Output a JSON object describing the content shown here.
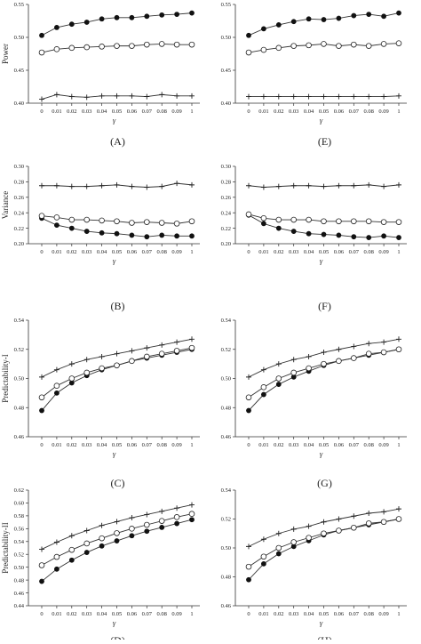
{
  "chart_data": [
    {
      "panel_label": "(A)",
      "type": "line",
      "ylabel": "Power",
      "xlabel": "γ",
      "x": [
        "0",
        "0.01",
        "0.02",
        "0.03",
        "0.04",
        "0.05",
        "0.06",
        "0.07",
        "0.08",
        "0.09",
        "1"
      ],
      "ylim": [
        0.4,
        0.55
      ],
      "yticks": [
        "0.40",
        "0.45",
        "0.50",
        "0.55"
      ],
      "series": [
        {
          "marker": "filled-circle",
          "values": [
            0.503,
            0.515,
            0.52,
            0.523,
            0.528,
            0.53,
            0.53,
            0.532,
            0.534,
            0.535,
            0.537
          ]
        },
        {
          "marker": "open-circle",
          "values": [
            0.477,
            0.482,
            0.484,
            0.485,
            0.486,
            0.487,
            0.487,
            0.489,
            0.49,
            0.489,
            0.489
          ]
        },
        {
          "marker": "plus",
          "values": [
            0.406,
            0.413,
            0.41,
            0.409,
            0.411,
            0.411,
            0.411,
            0.41,
            0.413,
            0.411,
            0.411
          ]
        }
      ]
    },
    {
      "panel_label": "(E)",
      "type": "line",
      "ylabel": "",
      "xlabel": "γ",
      "x": [
        "0",
        "0.01",
        "0.02",
        "0.03",
        "0.04",
        "0.05",
        "0.06",
        "0.07",
        "0.08",
        "0.09",
        "1"
      ],
      "ylim": [
        0.4,
        0.55
      ],
      "yticks": [
        "0.40",
        "0.45",
        "0.50",
        "0.55"
      ],
      "series": [
        {
          "marker": "filled-circle",
          "values": [
            0.503,
            0.513,
            0.519,
            0.524,
            0.528,
            0.527,
            0.529,
            0.533,
            0.535,
            0.532,
            0.537
          ]
        },
        {
          "marker": "open-circle",
          "values": [
            0.477,
            0.481,
            0.484,
            0.487,
            0.488,
            0.49,
            0.487,
            0.489,
            0.487,
            0.49,
            0.491
          ]
        },
        {
          "marker": "plus",
          "values": [
            0.41,
            0.41,
            0.41,
            0.41,
            0.41,
            0.41,
            0.41,
            0.41,
            0.41,
            0.41,
            0.411
          ]
        }
      ]
    },
    {
      "panel_label": "(B)",
      "type": "line",
      "ylabel": "Variance",
      "xlabel": "γ",
      "x": [
        "0",
        "0.01",
        "0.02",
        "0.03",
        "0.04",
        "0.05",
        "0.06",
        "0.07",
        "0.08",
        "0.09",
        "1"
      ],
      "ylim": [
        0.2,
        0.3
      ],
      "yticks": [
        "0.20",
        "0.22",
        "0.24",
        "0.26",
        "0.28",
        "0.30"
      ],
      "series": [
        {
          "marker": "filled-circle",
          "values": [
            0.233,
            0.224,
            0.22,
            0.216,
            0.214,
            0.213,
            0.211,
            0.209,
            0.211,
            0.21,
            0.21
          ]
        },
        {
          "marker": "open-circle",
          "values": [
            0.236,
            0.234,
            0.231,
            0.231,
            0.23,
            0.229,
            0.227,
            0.228,
            0.227,
            0.226,
            0.229
          ]
        },
        {
          "marker": "plus",
          "values": [
            0.275,
            0.275,
            0.274,
            0.274,
            0.275,
            0.276,
            0.274,
            0.273,
            0.274,
            0.278,
            0.276
          ]
        }
      ]
    },
    {
      "panel_label": "(F)",
      "type": "line",
      "ylabel": "",
      "xlabel": "γ",
      "x": [
        "0",
        "0.01",
        "0.02",
        "0.03",
        "0.04",
        "0.05",
        "0.06",
        "0.07",
        "0.08",
        "0.09",
        "1"
      ],
      "ylim": [
        0.2,
        0.3
      ],
      "yticks": [
        "0.20",
        "0.22",
        "0.24",
        "0.26",
        "0.28",
        "0.30"
      ],
      "series": [
        {
          "marker": "filled-circle",
          "values": [
            0.237,
            0.226,
            0.22,
            0.216,
            0.213,
            0.212,
            0.211,
            0.209,
            0.208,
            0.21,
            0.208
          ]
        },
        {
          "marker": "open-circle",
          "values": [
            0.238,
            0.233,
            0.231,
            0.231,
            0.231,
            0.229,
            0.229,
            0.229,
            0.229,
            0.228,
            0.228
          ]
        },
        {
          "marker": "plus",
          "values": [
            0.275,
            0.273,
            0.274,
            0.275,
            0.275,
            0.274,
            0.275,
            0.275,
            0.276,
            0.274,
            0.276
          ]
        }
      ]
    },
    {
      "panel_label": "(C)",
      "type": "line",
      "ylabel": "Predictability-I",
      "xlabel": "γ",
      "x": [
        "0",
        "0.01",
        "0.02",
        "0.03",
        "0.04",
        "0.05",
        "0.06",
        "0.07",
        "0.08",
        "0.09",
        "1"
      ],
      "ylim": [
        0.46,
        0.54
      ],
      "yticks": [
        "0.46",
        "0.48",
        "0.50",
        "0.52",
        "0.54"
      ],
      "series": [
        {
          "marker": "filled-circle",
          "values": [
            0.478,
            0.49,
            0.497,
            0.502,
            0.506,
            0.509,
            0.512,
            0.514,
            0.516,
            0.518,
            0.52
          ]
        },
        {
          "marker": "open-circle",
          "values": [
            0.487,
            0.495,
            0.5,
            0.504,
            0.507,
            0.509,
            0.512,
            0.515,
            0.517,
            0.519,
            0.521
          ]
        },
        {
          "marker": "plus",
          "values": [
            0.501,
            0.506,
            0.51,
            0.513,
            0.515,
            0.517,
            0.519,
            0.521,
            0.523,
            0.525,
            0.527
          ]
        }
      ]
    },
    {
      "panel_label": "(G)",
      "type": "line",
      "ylabel": "",
      "xlabel": "γ",
      "x": [
        "0",
        "0.01",
        "0.02",
        "0.03",
        "0.04",
        "0.05",
        "0.06",
        "0.07",
        "0.08",
        "0.09",
        "1"
      ],
      "ylim": [
        0.46,
        0.54
      ],
      "yticks": [
        "0.46",
        "0.48",
        "0.50",
        "0.52",
        "0.54"
      ],
      "series": [
        {
          "marker": "filled-circle",
          "values": [
            0.478,
            0.489,
            0.496,
            0.501,
            0.505,
            0.509,
            0.512,
            0.514,
            0.516,
            0.518,
            0.52
          ]
        },
        {
          "marker": "open-circle",
          "values": [
            0.487,
            0.494,
            0.5,
            0.504,
            0.507,
            0.51,
            0.512,
            0.514,
            0.517,
            0.518,
            0.52
          ]
        },
        {
          "marker": "plus",
          "values": [
            0.501,
            0.506,
            0.51,
            0.513,
            0.515,
            0.518,
            0.52,
            0.522,
            0.524,
            0.525,
            0.527
          ]
        }
      ]
    },
    {
      "panel_label": "(D)",
      "type": "line",
      "ylabel": "Predictability-II",
      "xlabel": "γ",
      "x": [
        "0",
        "0.01",
        "0.02",
        "0.03",
        "0.04",
        "0.05",
        "0.06",
        "0.07",
        "0.08",
        "0.09",
        "1"
      ],
      "ylim": [
        0.44,
        0.62
      ],
      "yticks": [
        "0.44",
        "0.46",
        "0.48",
        "0.50",
        "0.52",
        "0.54",
        "0.56",
        "0.58",
        "0.60",
        "0.62"
      ],
      "series": [
        {
          "marker": "filled-circle",
          "values": [
            0.478,
            0.497,
            0.511,
            0.523,
            0.533,
            0.541,
            0.549,
            0.556,
            0.562,
            0.568,
            0.574
          ]
        },
        {
          "marker": "open-circle",
          "values": [
            0.503,
            0.516,
            0.527,
            0.537,
            0.545,
            0.553,
            0.56,
            0.566,
            0.572,
            0.578,
            0.583
          ]
        },
        {
          "marker": "plus",
          "values": [
            0.528,
            0.539,
            0.549,
            0.557,
            0.565,
            0.571,
            0.577,
            0.582,
            0.587,
            0.592,
            0.597
          ]
        }
      ]
    },
    {
      "panel_label": "(H)",
      "type": "line",
      "ylabel": "",
      "xlabel": "γ",
      "x": [
        "0",
        "0.01",
        "0.02",
        "0.03",
        "0.04",
        "0.05",
        "0.06",
        "0.07",
        "0.08",
        "0.09",
        "1"
      ],
      "ylim": [
        0.46,
        0.54
      ],
      "yticks": [
        "0.46",
        "0.48",
        "0.50",
        "0.52",
        "0.54"
      ],
      "series": [
        {
          "marker": "filled-circle",
          "values": [
            0.478,
            0.489,
            0.496,
            0.501,
            0.505,
            0.509,
            0.512,
            0.514,
            0.516,
            0.518,
            0.52
          ]
        },
        {
          "marker": "open-circle",
          "values": [
            0.487,
            0.494,
            0.5,
            0.504,
            0.507,
            0.51,
            0.512,
            0.514,
            0.517,
            0.518,
            0.52
          ]
        },
        {
          "marker": "plus",
          "values": [
            0.501,
            0.506,
            0.51,
            0.513,
            0.515,
            0.518,
            0.52,
            0.522,
            0.524,
            0.525,
            0.527
          ]
        }
      ]
    }
  ]
}
